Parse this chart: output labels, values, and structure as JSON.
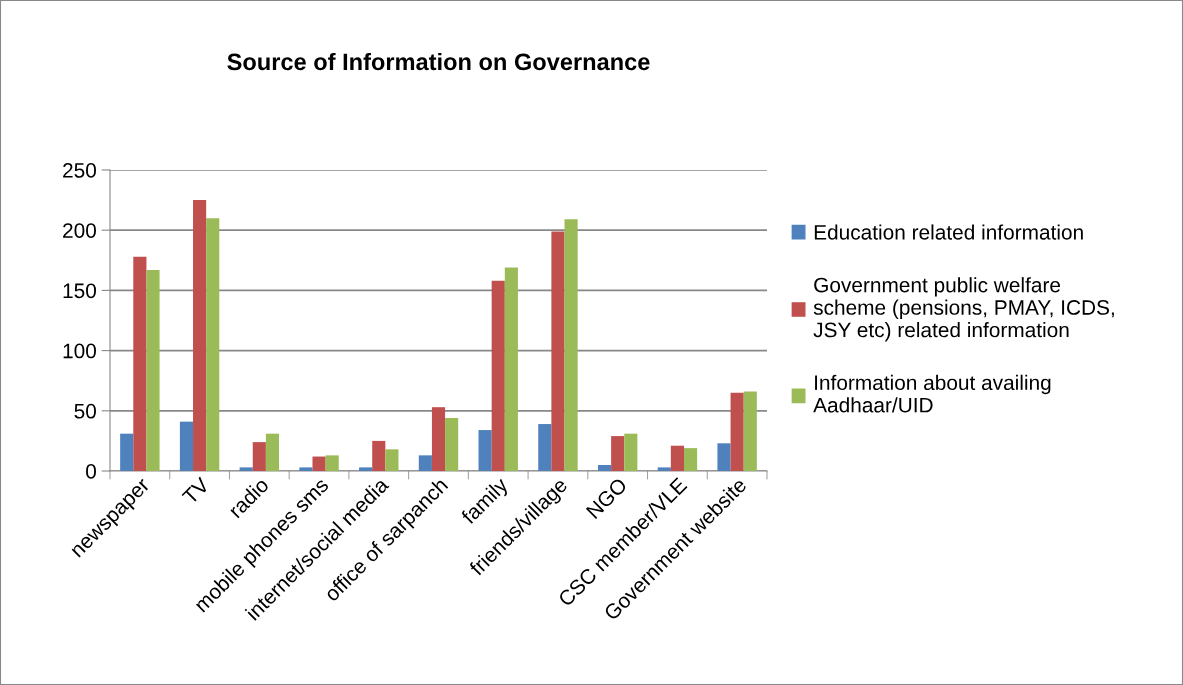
{
  "chart_data": {
    "type": "bar",
    "title": "Source of Information on Governance",
    "categories": [
      "newspaper",
      "TV",
      "radio",
      "mobile phones sms",
      "internet/social media",
      "office of sarpanch",
      "family",
      "friends/village",
      "NGO",
      "CSC member/VLE",
      "Government website"
    ],
    "series": [
      {
        "name": "Education related information",
        "color": "#4f81bd",
        "values": [
          31,
          41,
          3,
          3,
          3,
          13,
          34,
          39,
          5,
          3,
          23
        ]
      },
      {
        "name": "Government public welfare\nscheme (pensions, PMAY, ICDS,\nJSY etc) related information",
        "color": "#c0504d",
        "values": [
          178,
          225,
          24,
          12,
          25,
          53,
          158,
          199,
          29,
          21,
          65
        ]
      },
      {
        "name": "Information about availing\nAadhaar/UID",
        "color": "#9bbb59",
        "values": [
          167,
          210,
          31,
          13,
          18,
          44,
          169,
          209,
          31,
          19,
          66
        ]
      }
    ],
    "ylim": [
      0,
      250
    ],
    "yticks": [
      0,
      50,
      100,
      150,
      200,
      250
    ],
    "grid": "y",
    "legend": "right"
  }
}
